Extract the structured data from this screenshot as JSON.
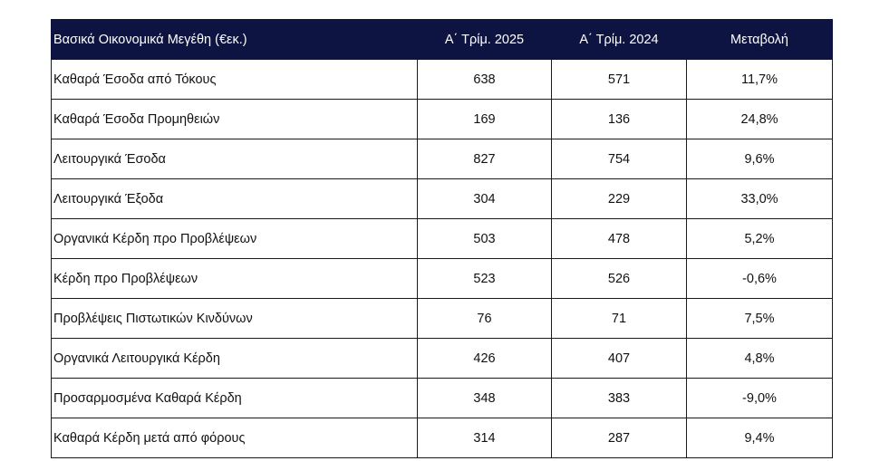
{
  "table": {
    "headers": [
      "Βασικά Οικονομικά Μεγέθη (€εκ.)",
      "Α΄ Τρίμ. 2025",
      "Α΄ Τρίμ. 2024",
      "Μεταβολή"
    ],
    "rows": [
      [
        "Καθαρά Έσοδα από Τόκους",
        "638",
        "571",
        "11,7%"
      ],
      [
        "Καθαρά Έσοδα Προμηθειών",
        "169",
        "136",
        "24,8%"
      ],
      [
        "Λειτουργικά Έσοδα",
        "827",
        "754",
        "9,6%"
      ],
      [
        "Λειτουργικά Έξοδα",
        "304",
        "229",
        "33,0%"
      ],
      [
        "Οργανικά Κέρδη προ Προβλέψεων",
        "503",
        "478",
        "5,2%"
      ],
      [
        "Κέρδη προ Προβλέψεων",
        "523",
        "526",
        "-0,6%"
      ],
      [
        "Προβλέψεις Πιστωτικών Κινδύνων",
        "76",
        "71",
        "7,5%"
      ],
      [
        "Οργανικά Λειτουργικά Κέρδη",
        "426",
        "407",
        "4,8%"
      ],
      [
        "Προσαρμοσμένα Καθαρά Κέρδη",
        "348",
        "383",
        "-9,0%"
      ],
      [
        "Καθαρά Κέρδη μετά από φόρους",
        "314",
        "287",
        "9,4%"
      ]
    ]
  },
  "colors": {
    "header_bg": "#0e1441",
    "header_text": "#ffffff",
    "border": "#1a1a1a"
  }
}
